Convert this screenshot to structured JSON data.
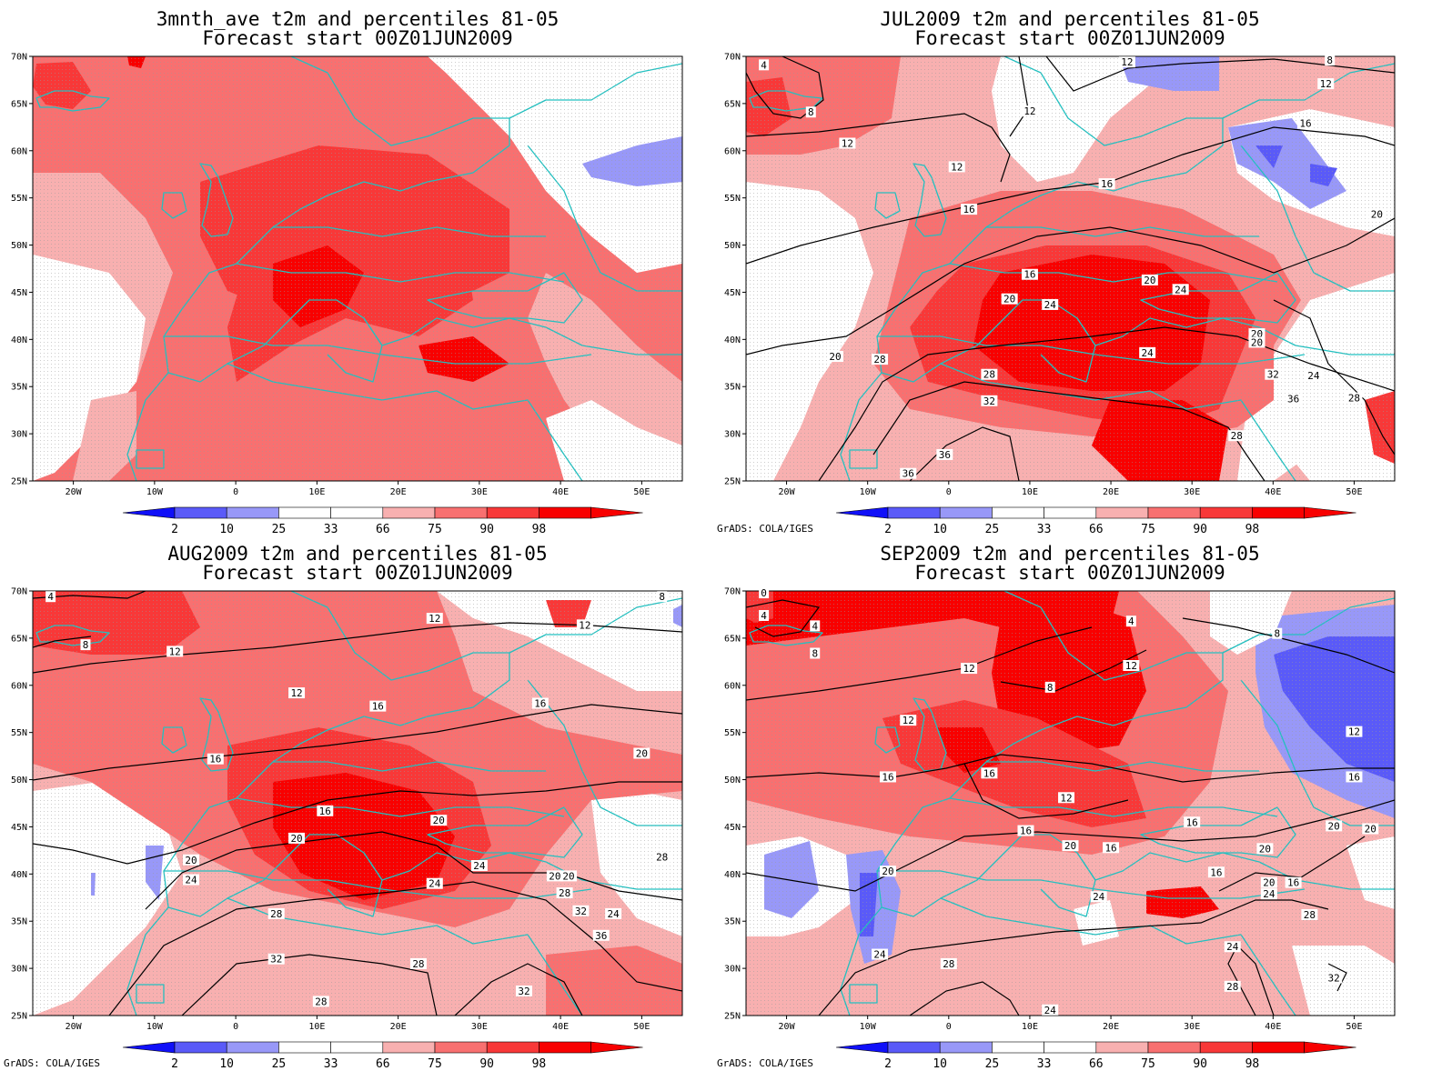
{
  "credit": "GrADS: COLA/IGES",
  "colors": {
    "background": "#ffffff",
    "coast": "#22c0c0",
    "contour": "#000000",
    "p2": "#1010f8",
    "p10": "#5a5af8",
    "p25": "#9898f8",
    "p33": "#ffffff",
    "p66": "#ffffff",
    "p75": "#f8b0b0",
    "p90": "#f87070",
    "p98": "#f83838",
    "p100": "#f80000"
  },
  "chart_data": [
    {
      "type": "heatmap",
      "title": "3mnth_ave t2m and percentiles 81-05",
      "subtitle": "Forecast start 00Z01JUN2009",
      "xlim": [
        -25,
        55
      ],
      "ylim": [
        25,
        70
      ],
      "x_ticks": [
        "20W",
        "10W",
        "0",
        "10E",
        "20E",
        "30E",
        "40E",
        "50E"
      ],
      "y_ticks": [
        "25N",
        "30N",
        "35N",
        "40N",
        "45N",
        "50N",
        "55N",
        "60N",
        "65N",
        "70N"
      ],
      "colorbar_levels": [
        "2",
        "10",
        "25",
        "33",
        "66",
        "75",
        "90",
        "98"
      ],
      "contour_labels": [],
      "credit_shown": false
    },
    {
      "type": "heatmap",
      "title": "JUL2009 t2m and percentiles 81-05",
      "subtitle": "Forecast start 00Z01JUN2009",
      "xlim": [
        -25,
        55
      ],
      "ylim": [
        25,
        70
      ],
      "x_ticks": [
        "20W",
        "10W",
        "0",
        "10E",
        "20E",
        "30E",
        "40E",
        "50E"
      ],
      "y_ticks": [
        "25N",
        "30N",
        "35N",
        "40N",
        "45N",
        "50N",
        "55N",
        "60N",
        "65N",
        "70N"
      ],
      "colorbar_levels": [
        "2",
        "10",
        "25",
        "33",
        "66",
        "75",
        "90",
        "98"
      ],
      "contour_labels": [
        {
          "text": "4",
          "lon": -22.8,
          "lat": 69.1
        },
        {
          "text": "8",
          "lon": -17.0,
          "lat": 64.1
        },
        {
          "text": "12",
          "lon": -12.5,
          "lat": 60.8
        },
        {
          "text": "12",
          "lon": 1.0,
          "lat": 58.3
        },
        {
          "text": "12",
          "lon": 10.0,
          "lat": 64.2
        },
        {
          "text": "12",
          "lon": 22.0,
          "lat": 69.4
        },
        {
          "text": "8",
          "lon": 47.0,
          "lat": 69.6
        },
        {
          "text": "12",
          "lon": 46.5,
          "lat": 67.1
        },
        {
          "text": "16",
          "lon": 44.0,
          "lat": 62.9
        },
        {
          "text": "16",
          "lon": 19.5,
          "lat": 56.5
        },
        {
          "text": "16",
          "lon": 2.5,
          "lat": 53.8
        },
        {
          "text": "20",
          "lon": 52.8,
          "lat": 53.3
        },
        {
          "text": "16",
          "lon": 10.0,
          "lat": 46.9
        },
        {
          "text": "20",
          "lon": 24.8,
          "lat": 46.3
        },
        {
          "text": "24",
          "lon": 28.6,
          "lat": 45.3
        },
        {
          "text": "20",
          "lon": 7.5,
          "lat": 44.3
        },
        {
          "text": "24",
          "lon": 12.5,
          "lat": 43.7
        },
        {
          "text": "20",
          "lon": 38.0,
          "lat": 40.6
        },
        {
          "text": "20",
          "lon": 38.0,
          "lat": 39.7
        },
        {
          "text": "20",
          "lon": -14.0,
          "lat": 38.2
        },
        {
          "text": "28",
          "lon": -8.5,
          "lat": 37.9
        },
        {
          "text": "24",
          "lon": 24.5,
          "lat": 38.6
        },
        {
          "text": "32",
          "lon": 40.0,
          "lat": 36.3
        },
        {
          "text": "24",
          "lon": 45.0,
          "lat": 36.2
        },
        {
          "text": "28",
          "lon": 5.0,
          "lat": 36.3
        },
        {
          "text": "36",
          "lon": 42.5,
          "lat": 33.7
        },
        {
          "text": "28",
          "lon": 50.0,
          "lat": 33.8
        },
        {
          "text": "32",
          "lon": 5.0,
          "lat": 33.5
        },
        {
          "text": "28",
          "lon": 35.5,
          "lat": 29.8
        },
        {
          "text": "36",
          "lon": -0.5,
          "lat": 27.8
        },
        {
          "text": "36",
          "lon": -5.0,
          "lat": 25.8
        }
      ],
      "credit_shown": true
    },
    {
      "type": "heatmap",
      "title": "AUG2009 t2m and percentiles 81-05",
      "subtitle": "Forecast start 00Z01JUN2009",
      "xlim": [
        -25,
        55
      ],
      "ylim": [
        25,
        70
      ],
      "x_ticks": [
        "20W",
        "10W",
        "0",
        "10E",
        "20E",
        "30E",
        "40E",
        "50E"
      ],
      "y_ticks": [
        "25N",
        "30N",
        "35N",
        "40N",
        "45N",
        "50N",
        "55N",
        "60N",
        "65N",
        "70N"
      ],
      "colorbar_levels": [
        "2",
        "10",
        "25",
        "33",
        "66",
        "75",
        "90",
        "98"
      ],
      "contour_labels": [
        {
          "text": "4",
          "lon": -22.8,
          "lat": 69.4
        },
        {
          "text": "8",
          "lon": -18.5,
          "lat": 64.3
        },
        {
          "text": "12",
          "lon": -7.5,
          "lat": 63.6
        },
        {
          "text": "12",
          "lon": 24.5,
          "lat": 67.1
        },
        {
          "text": "12",
          "lon": 43.0,
          "lat": 66.4
        },
        {
          "text": "8",
          "lon": 52.5,
          "lat": 69.4
        },
        {
          "text": "12",
          "lon": 7.5,
          "lat": 59.2
        },
        {
          "text": "16",
          "lon": 17.5,
          "lat": 57.8
        },
        {
          "text": "16",
          "lon": 37.5,
          "lat": 58.1
        },
        {
          "text": "16",
          "lon": -2.5,
          "lat": 52.2
        },
        {
          "text": "20",
          "lon": 50.0,
          "lat": 52.8
        },
        {
          "text": "16",
          "lon": 11.0,
          "lat": 46.7
        },
        {
          "text": "20",
          "lon": 25.0,
          "lat": 45.7
        },
        {
          "text": "20",
          "lon": 7.5,
          "lat": 43.8
        },
        {
          "text": "20",
          "lon": -5.5,
          "lat": 41.5
        },
        {
          "text": "28",
          "lon": 52.5,
          "lat": 41.8
        },
        {
          "text": "24",
          "lon": 30.0,
          "lat": 40.9
        },
        {
          "text": "20",
          "lon": 39.3,
          "lat": 39.8
        },
        {
          "text": "20",
          "lon": 41.0,
          "lat": 39.8
        },
        {
          "text": "24",
          "lon": -5.5,
          "lat": 39.4
        },
        {
          "text": "24",
          "lon": 24.5,
          "lat": 39.0
        },
        {
          "text": "28",
          "lon": 40.5,
          "lat": 38.0
        },
        {
          "text": "32",
          "lon": 42.5,
          "lat": 36.1
        },
        {
          "text": "24",
          "lon": 46.5,
          "lat": 35.8
        },
        {
          "text": "28",
          "lon": 5.0,
          "lat": 35.8
        },
        {
          "text": "36",
          "lon": 45.0,
          "lat": 33.5
        },
        {
          "text": "32",
          "lon": 5.0,
          "lat": 31.0
        },
        {
          "text": "28",
          "lon": 22.5,
          "lat": 30.5
        },
        {
          "text": "32",
          "lon": 35.5,
          "lat": 27.6
        },
        {
          "text": "28",
          "lon": 10.5,
          "lat": 26.5
        }
      ],
      "credit_shown": true
    },
    {
      "type": "heatmap",
      "title": "SEP2009 t2m and percentiles 81-05",
      "subtitle": "Forecast start 00Z01JUN2009",
      "xlim": [
        -25,
        55
      ],
      "ylim": [
        25,
        70
      ],
      "x_ticks": [
        "20W",
        "10W",
        "0",
        "10E",
        "20E",
        "30E",
        "40E",
        "50E"
      ],
      "y_ticks": [
        "25N",
        "30N",
        "35N",
        "40N",
        "45N",
        "50N",
        "55N",
        "60N",
        "65N",
        "70N"
      ],
      "colorbar_levels": [
        "2",
        "10",
        "25",
        "33",
        "66",
        "75",
        "90",
        "98"
      ],
      "contour_labels": [
        {
          "text": "0",
          "lon": -22.8,
          "lat": 69.8
        },
        {
          "text": "4",
          "lon": -22.8,
          "lat": 67.4
        },
        {
          "text": "4",
          "lon": -16.5,
          "lat": 66.3
        },
        {
          "text": "8",
          "lon": -16.5,
          "lat": 63.4
        },
        {
          "text": "4",
          "lon": 22.5,
          "lat": 66.8
        },
        {
          "text": "8",
          "lon": 40.5,
          "lat": 65.5
        },
        {
          "text": "12",
          "lon": 22.5,
          "lat": 62.1
        },
        {
          "text": "12",
          "lon": 2.5,
          "lat": 61.8
        },
        {
          "text": "8",
          "lon": 12.5,
          "lat": 59.8
        },
        {
          "text": "12",
          "lon": -5.0,
          "lat": 56.3
        },
        {
          "text": "12",
          "lon": 50.0,
          "lat": 55.1
        },
        {
          "text": "16",
          "lon": -7.5,
          "lat": 50.3
        },
        {
          "text": "16",
          "lon": 5.0,
          "lat": 50.7
        },
        {
          "text": "16",
          "lon": 50.0,
          "lat": 50.3
        },
        {
          "text": "12",
          "lon": 14.5,
          "lat": 48.1
        },
        {
          "text": "16",
          "lon": 30.0,
          "lat": 45.5
        },
        {
          "text": "20",
          "lon": 47.5,
          "lat": 45.1
        },
        {
          "text": "20",
          "lon": 52.0,
          "lat": 44.8
        },
        {
          "text": "16",
          "lon": 9.5,
          "lat": 44.6
        },
        {
          "text": "20",
          "lon": 39.0,
          "lat": 42.7
        },
        {
          "text": "20",
          "lon": 15.0,
          "lat": 43.0
        },
        {
          "text": "16",
          "lon": 20.0,
          "lat": 42.8
        },
        {
          "text": "16",
          "lon": 33.0,
          "lat": 40.2
        },
        {
          "text": "16",
          "lon": 42.5,
          "lat": 39.1
        },
        {
          "text": "20",
          "lon": -7.5,
          "lat": 40.3
        },
        {
          "text": "20",
          "lon": 39.5,
          "lat": 39.1
        },
        {
          "text": "24",
          "lon": 39.5,
          "lat": 37.9
        },
        {
          "text": "24",
          "lon": 18.5,
          "lat": 37.6
        },
        {
          "text": "28",
          "lon": 44.5,
          "lat": 35.7
        },
        {
          "text": "24",
          "lon": -8.5,
          "lat": 31.5
        },
        {
          "text": "24",
          "lon": 35.0,
          "lat": 32.3
        },
        {
          "text": "28",
          "lon": 0.0,
          "lat": 30.5
        },
        {
          "text": "28",
          "lon": 35.0,
          "lat": 28.1
        },
        {
          "text": "32",
          "lon": 47.5,
          "lat": 29.0
        },
        {
          "text": "24",
          "lon": 12.5,
          "lat": 25.6
        }
      ],
      "credit_shown": true
    }
  ]
}
